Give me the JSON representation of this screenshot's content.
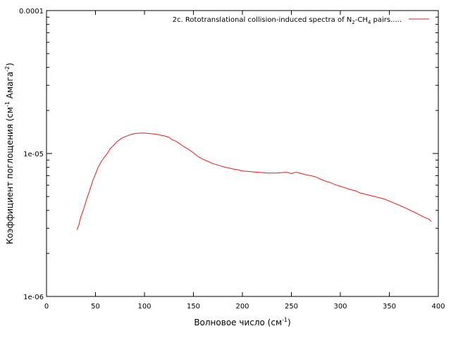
{
  "chart_data": {
    "type": "line",
    "xlabel": {
      "text": "Волновое число (см",
      "sup": "-1",
      "tail": ")"
    },
    "ylabel": {
      "text": "Коэффициент поглощения (см",
      "sup1": "-1",
      "mid": " Амага",
      "sup2": "-2",
      "tail": ")"
    },
    "xlim": [
      0,
      400
    ],
    "ylim": [
      1e-06,
      0.0001
    ],
    "yscale": "log",
    "x_ticks": [
      0,
      50,
      100,
      150,
      200,
      250,
      300,
      350,
      400
    ],
    "x_tick_labels": [
      "0",
      "50",
      "100",
      "150",
      "200",
      "250",
      "300",
      "350",
      "400"
    ],
    "y_ticks": [
      1e-06,
      1e-05,
      0.0001
    ],
    "y_tick_labels": [
      "1e-06",
      "1e-05",
      "0.0001"
    ],
    "legend": {
      "position": "top-right",
      "label_parts": [
        "2c. Rototranslational collision-induced spectra of N",
        "2",
        "-CH",
        "4",
        " pairs....."
      ]
    },
    "series": [
      {
        "color": "#e41a1c",
        "x": [
          31,
          33,
          35,
          38,
          41,
          44,
          47,
          50,
          53,
          56,
          59,
          62,
          65,
          68,
          72,
          76,
          80,
          85,
          90,
          95,
          100,
          105,
          110,
          115,
          120,
          125,
          128,
          132,
          136,
          140,
          145,
          150,
          155,
          160,
          165,
          170,
          175,
          180,
          185,
          190,
          195,
          200,
          205,
          210,
          215,
          220,
          225,
          230,
          235,
          240,
          245,
          250,
          255,
          260,
          265,
          270,
          275,
          280,
          285,
          290,
          295,
          300,
          305,
          310,
          315,
          320,
          325,
          330,
          335,
          340,
          345,
          350,
          355,
          360,
          365,
          370,
          375,
          380,
          385,
          390,
          393
        ],
        "y": [
          2.92e-06,
          3.15e-06,
          3.6e-06,
          4.1e-06,
          4.8e-06,
          5.5e-06,
          6.4e-06,
          7.2e-06,
          8.1e-06,
          8.8e-06,
          9.4e-06,
          1e-05,
          1.08e-05,
          1.13e-05,
          1.21e-05,
          1.27e-05,
          1.31e-05,
          1.35e-05,
          1.38e-05,
          1.39e-05,
          1.39e-05,
          1.38e-05,
          1.37e-05,
          1.35e-05,
          1.33e-05,
          1.3e-05,
          1.25e-05,
          1.22e-05,
          1.17e-05,
          1.12e-05,
          1.07e-05,
          1.01e-05,
          9.5e-06,
          9.1e-06,
          8.8e-06,
          8.5e-06,
          8.3e-06,
          8.1e-06,
          7.95e-06,
          7.8e-06,
          7.7e-06,
          7.55e-06,
          7.5e-06,
          7.45e-06,
          7.4e-06,
          7.35e-06,
          7.3e-06,
          7.3e-06,
          7.3e-06,
          7.35e-06,
          7.4e-06,
          7.25e-06,
          7.4e-06,
          7.25e-06,
          7.1e-06,
          7e-06,
          6.85e-06,
          6.6e-06,
          6.4e-06,
          6.25e-06,
          6.05e-06,
          5.9e-06,
          5.75e-06,
          5.6e-06,
          5.5e-06,
          5.3e-06,
          5.2e-06,
          5.1e-06,
          5e-06,
          4.9e-06,
          4.8e-06,
          4.65e-06,
          4.5e-06,
          4.35e-06,
          4.2e-06,
          4.05e-06,
          3.9e-06,
          3.75e-06,
          3.6e-06,
          3.48e-06,
          3.35e-06
        ]
      }
    ]
  }
}
